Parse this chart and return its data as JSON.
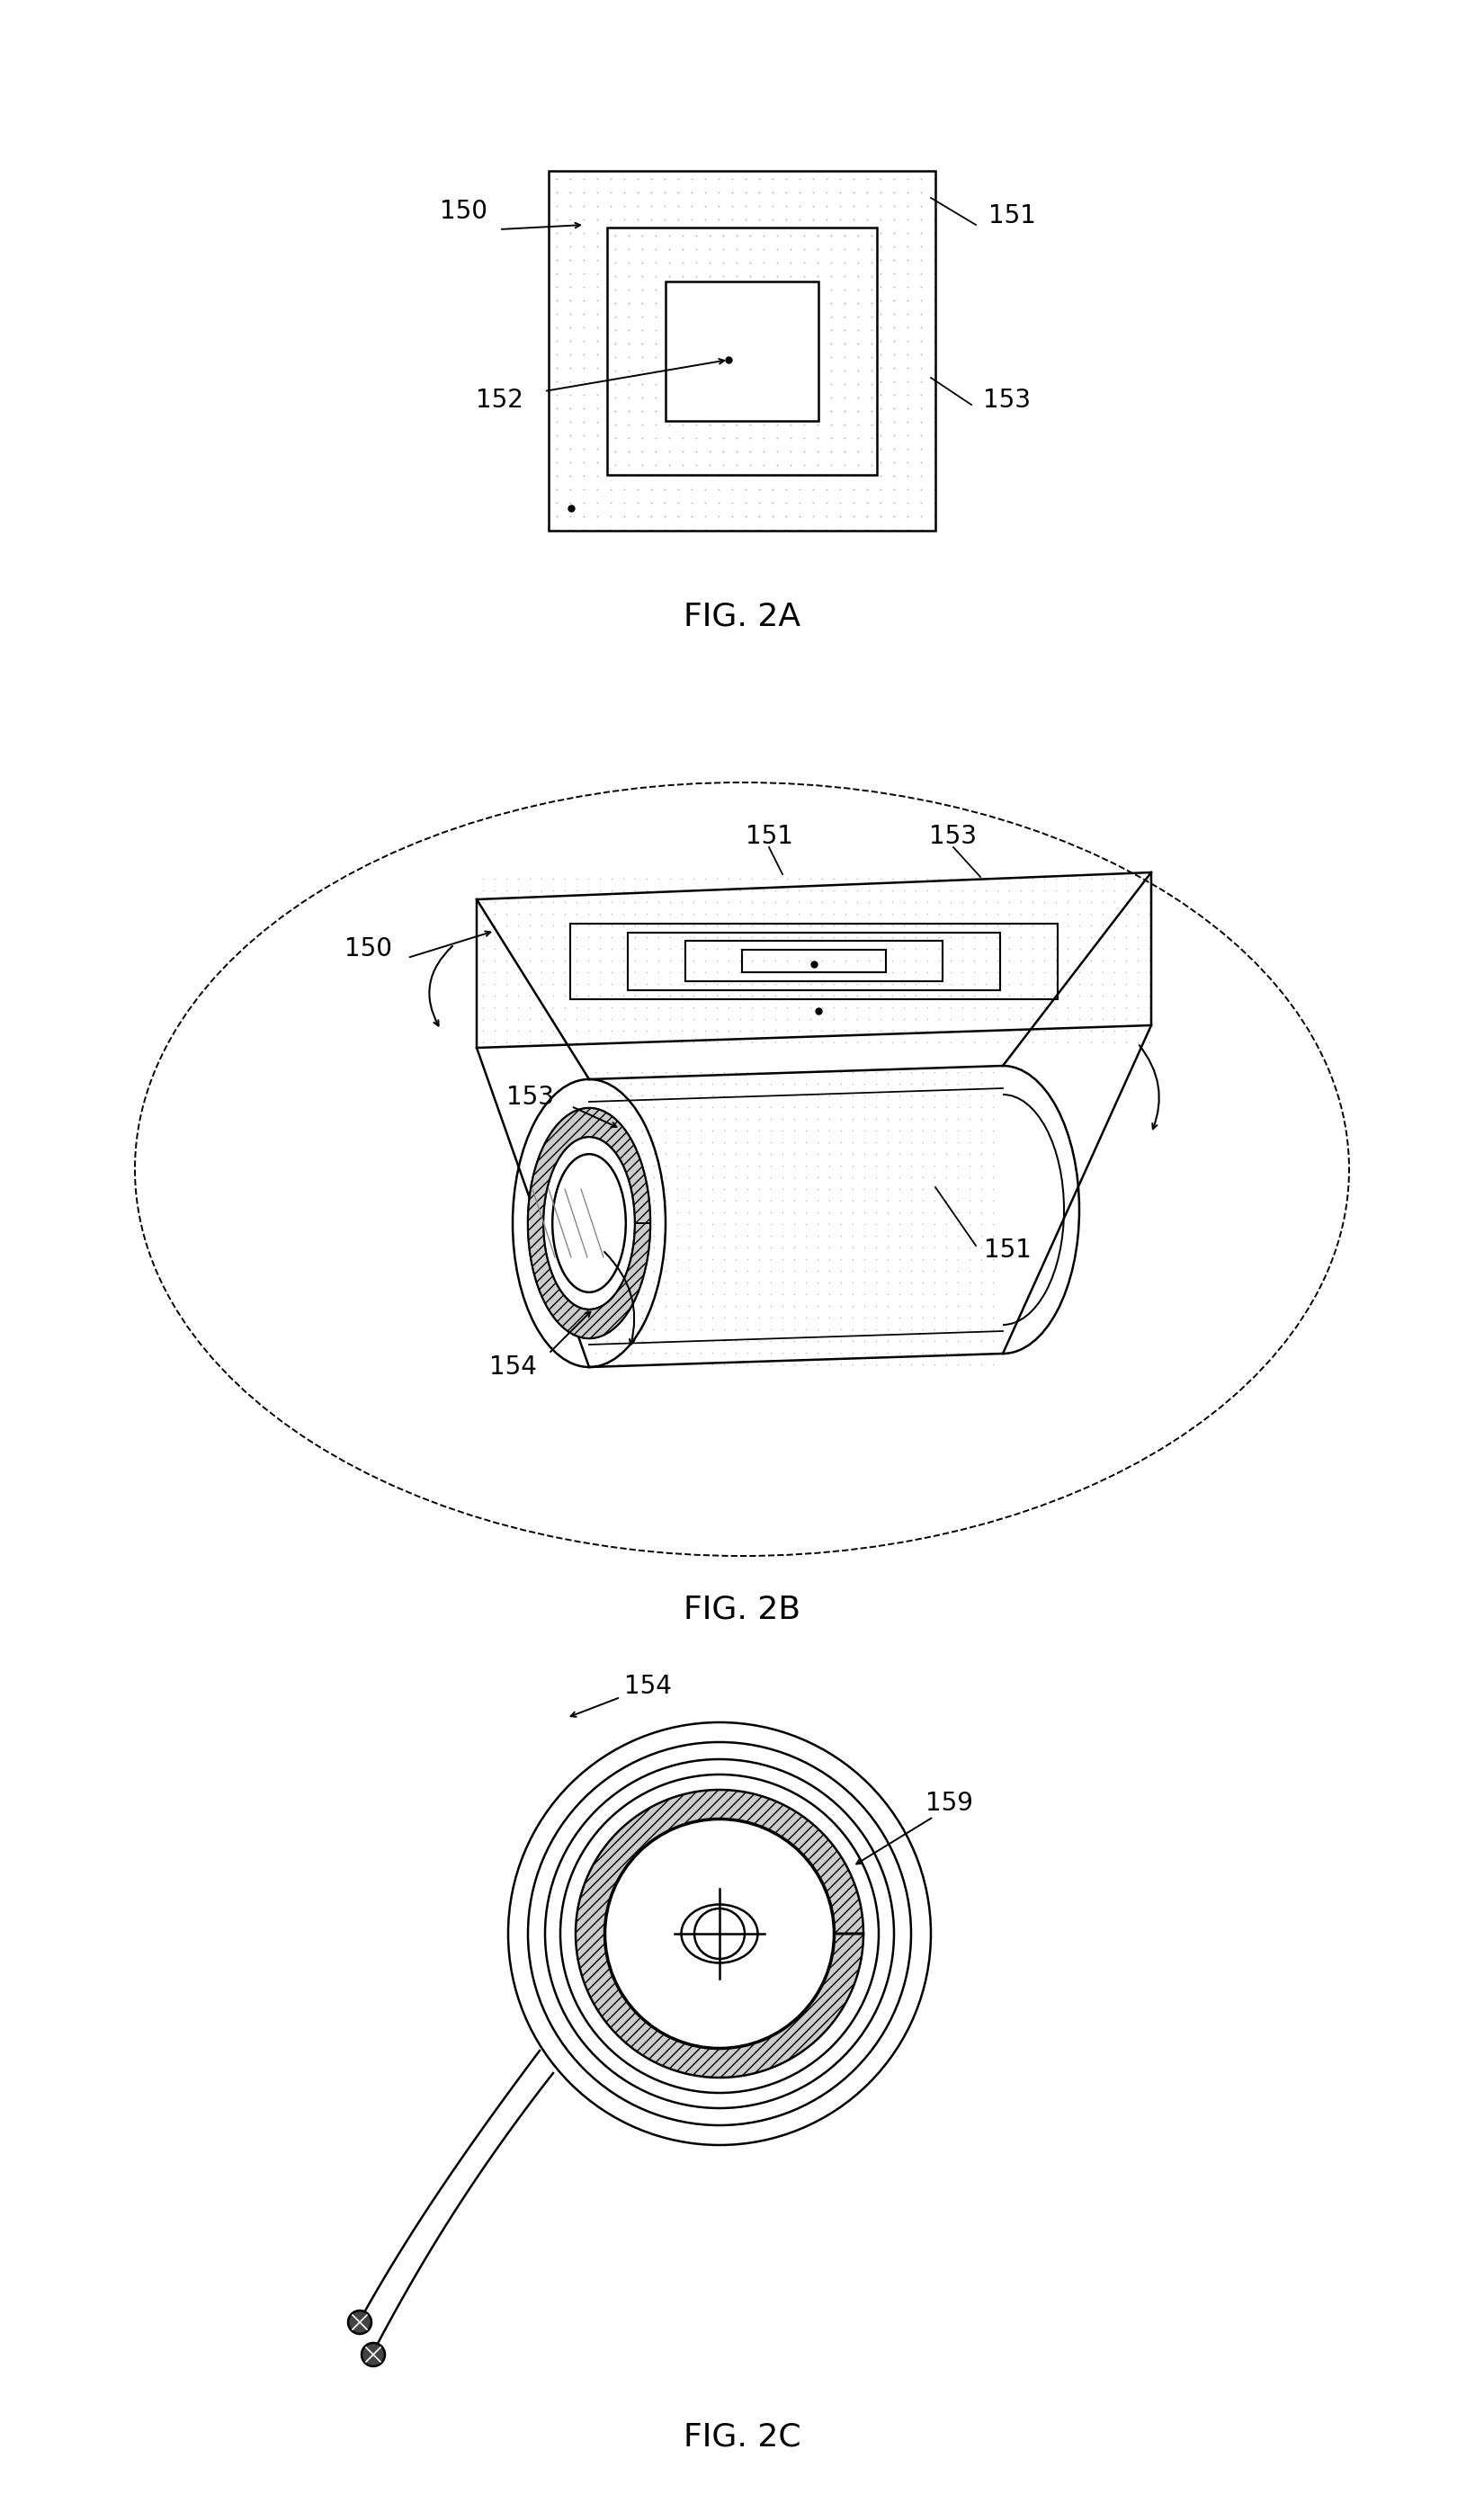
{
  "bg_color": "#ffffff",
  "line_color": "#000000",
  "dot_color": "#aaaaaa",
  "fig2a_label": "FIG. 2A",
  "fig2b_label": "FIG. 2B",
  "fig2c_label": "FIG. 2C",
  "lw": 1.8,
  "font_size": 20,
  "fig_label_size": 26
}
